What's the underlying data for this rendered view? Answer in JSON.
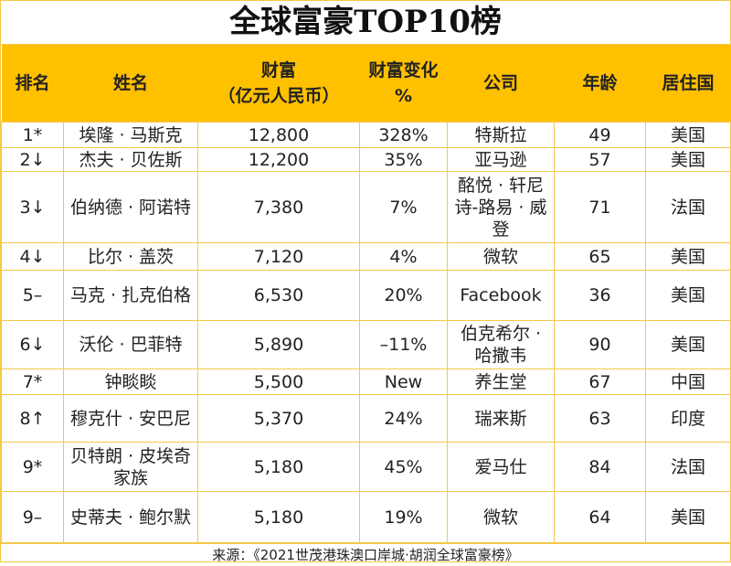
{
  "title": "全球富豪TOP10榜",
  "headers": [
    "排名",
    "姓名",
    "财富\n（亿元人民币）",
    "财富变化\n%",
    "公司",
    "年龄",
    "居住国"
  ],
  "rows": [
    [
      "1*",
      "埃隆 · 马斯克",
      "12,800",
      "328%",
      "特斯拉",
      "49",
      "美国"
    ],
    [
      "2↓",
      "杰夫 · 贝佐斯",
      "12,200",
      "35%",
      "亚马逊",
      "57",
      "美国"
    ],
    [
      "3↓",
      "伯纳德 · 阿诺特",
      "7,380",
      "7%",
      "酩悦 · 轩尼诗-路易 · 威登",
      "71",
      "法国"
    ],
    [
      "4↓",
      "比尔 · 盖茨",
      "7,120",
      "4%",
      "微软",
      "65",
      "美国"
    ],
    [
      "5–",
      "马克 · 扎克伯格",
      "6,530",
      "20%",
      "Facebook",
      "36",
      "美国"
    ],
    [
      "6↓",
      "沃伦 · 巴菲特",
      "5,890",
      "–11%",
      "伯克希尔 · 哈撒韦",
      "90",
      "美国"
    ],
    [
      "7*",
      "钟睒睒",
      "5,500",
      "New",
      "养生堂",
      "67",
      "中国"
    ],
    [
      "8↑",
      "穆克什 · 安巴尼",
      "5,370",
      "24%",
      "瑞来斯",
      "63",
      "印度"
    ],
    [
      "9*",
      "贝特朗 · 皮埃奇家族",
      "5,180",
      "45%",
      "爱马仕",
      "84",
      "法国"
    ],
    [
      "9–",
      "史蒂夫 · 鲍尔默",
      "5,180",
      "19%",
      "微软",
      "64",
      "美国"
    ]
  ],
  "source": "来源：《2021世茂港珠澳口岸城·胡润全球富豪榜》",
  "colors": {
    "header_bg": "#ffc000",
    "border": "#f3c94a"
  }
}
